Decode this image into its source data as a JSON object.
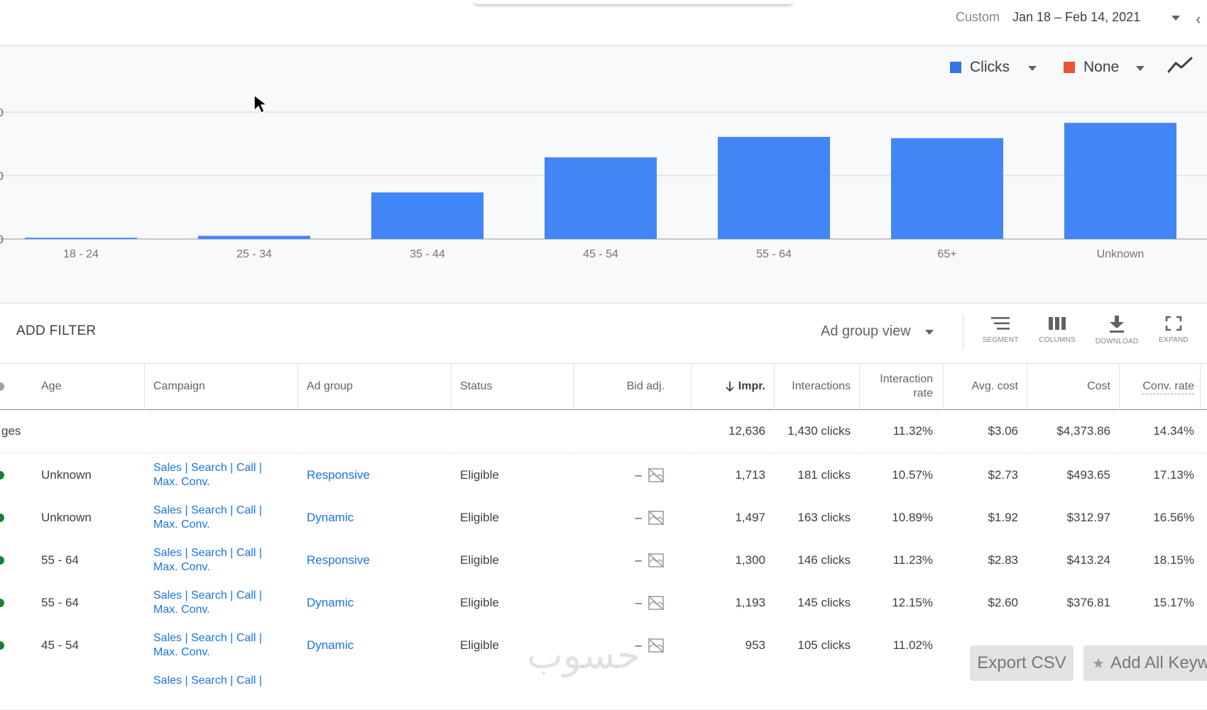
{
  "date_range": {
    "preset": "Custom",
    "range": "Jan 18 – Feb 14, 2021"
  },
  "chart_controls": {
    "metric1": {
      "label": "Clicks",
      "color": "#3476e4"
    },
    "metric2": {
      "label": "None",
      "color": "#e8542f"
    },
    "trend_icon": "trend-line-icon"
  },
  "chart_data": {
    "type": "bar",
    "categories": [
      "18 - 24",
      "25 - 34",
      "35 - 44",
      "45 - 54",
      "55 - 64",
      "65+",
      "Unknown"
    ],
    "series": [
      {
        "name": "Clicks",
        "values": [
          2,
          5,
          73,
          128,
          160,
          158,
          182
        ],
        "color": "#4285f4"
      }
    ],
    "ylim": [
      0,
      200
    ],
    "y_tick_labels": [
      "0",
      "0",
      "0"
    ],
    "grid": true
  },
  "toolbar": {
    "add_filter": "ADD FILTER",
    "view_select": "Ad group view",
    "tools": [
      {
        "label": "SEGMENT",
        "icon": "segment-icon"
      },
      {
        "label": "COLUMNS",
        "icon": "columns-icon"
      },
      {
        "label": "DOWNLOAD",
        "icon": "download-icon"
      },
      {
        "label": "EXPAND",
        "icon": "expand-icon"
      }
    ]
  },
  "table": {
    "headers": {
      "age": "Age",
      "campaign": "Campaign",
      "ad_group": "Ad group",
      "status": "Status",
      "bid_adj": "Bid adj.",
      "impr": "Impr.",
      "interactions": "Interactions",
      "interaction_rate_1": "Interaction",
      "interaction_rate_2": "rate",
      "avg_cost": "Avg. cost",
      "cost": "Cost",
      "conv_rate": "Conv. rate"
    },
    "total": {
      "label": "ges",
      "impr": "12,636",
      "interactions": "1,430 clicks",
      "interaction_rate": "11.32%",
      "avg_cost": "$3.06",
      "cost": "$4,373.86",
      "conv_rate": "14.34%"
    },
    "rows": [
      {
        "age": "Unknown",
        "campaign_1": "Sales | Search | Call |",
        "campaign_2": "Max. Conv.",
        "ad_group": "Responsive",
        "status": "Eligible",
        "bid_adj": "–",
        "impr": "1,713",
        "interactions": "181 clicks",
        "interaction_rate": "10.57%",
        "avg_cost": "$2.73",
        "cost": "$493.65",
        "conv_rate": "17.13%"
      },
      {
        "age": "Unknown",
        "campaign_1": "Sales | Search | Call |",
        "campaign_2": "Max. Conv.",
        "ad_group": "Dynamic",
        "status": "Eligible",
        "bid_adj": "–",
        "impr": "1,497",
        "interactions": "163 clicks",
        "interaction_rate": "10.89%",
        "avg_cost": "$1.92",
        "cost": "$312.97",
        "conv_rate": "16.56%"
      },
      {
        "age": "55 - 64",
        "campaign_1": "Sales | Search | Call |",
        "campaign_2": "Max. Conv.",
        "ad_group": "Responsive",
        "status": "Eligible",
        "bid_adj": "–",
        "impr": "1,300",
        "interactions": "146 clicks",
        "interaction_rate": "11.23%",
        "avg_cost": "$2.83",
        "cost": "$413.24",
        "conv_rate": "18.15%"
      },
      {
        "age": "55 - 64",
        "campaign_1": "Sales | Search | Call |",
        "campaign_2": "Max. Conv.",
        "ad_group": "Dynamic",
        "status": "Eligible",
        "bid_adj": "–",
        "impr": "1,193",
        "interactions": "145 clicks",
        "interaction_rate": "12.15%",
        "avg_cost": "$2.60",
        "cost": "$376.81",
        "conv_rate": "15.17%"
      },
      {
        "age": "45 - 54",
        "campaign_1": "Sales | Search | Call |",
        "campaign_2": "Max. Conv.",
        "ad_group": "Dynamic",
        "status": "Eligible",
        "bid_adj": "–",
        "impr": "953",
        "interactions": "105 clicks",
        "interaction_rate": "11.02%",
        "avg_cost": "",
        "cost": "",
        "conv_rate": ""
      },
      {
        "age": "",
        "campaign_1": "Sales | Search | Call |",
        "campaign_2": "",
        "ad_group": "",
        "status": "",
        "bid_adj": "",
        "impr": "",
        "interactions": "",
        "interaction_rate": "",
        "avg_cost": "",
        "cost": "",
        "conv_rate": ""
      }
    ]
  },
  "overlay": {
    "export_csv": "Export CSV",
    "add_all_keywords": "Add All Keyw",
    "watermark": "حسوب"
  }
}
